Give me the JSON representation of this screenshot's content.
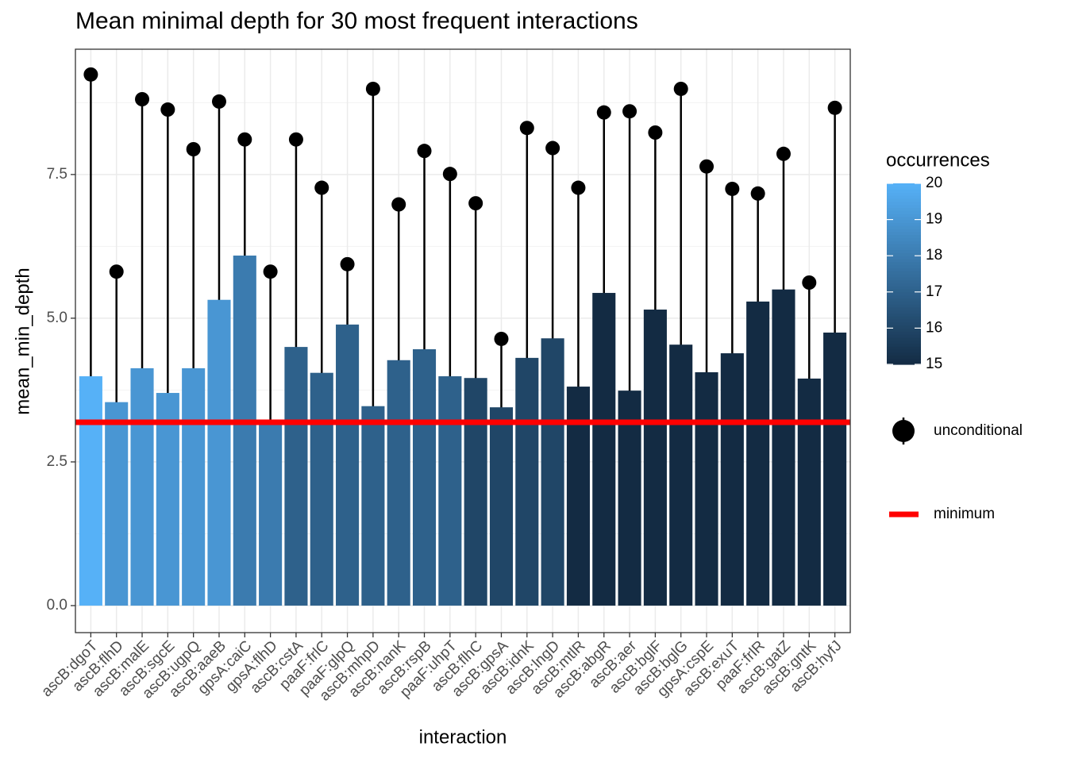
{
  "chart_data": {
    "type": "bar",
    "title": "Mean minimal depth for 30 most frequent interactions",
    "x_label": "interaction",
    "y_label": "mean_min_depth",
    "categories": [
      "ascB:dgoT",
      "ascB:flhD",
      "ascB:malE",
      "ascB:sgcE",
      "ascB:ugpQ",
      "ascB:aaeB",
      "gpsA:caiC",
      "gpsA:flhD",
      "ascB:cstA",
      "paaF:frlC",
      "paaF:glpQ",
      "ascB:mhpD",
      "ascB:nanK",
      "ascB:rspB",
      "paaF:uhpT",
      "ascB:flhC",
      "ascB:gpsA",
      "ascB:idnK",
      "ascB:lngD",
      "ascB:mtlR",
      "ascB:abgR",
      "ascB:aer",
      "ascB:bglF",
      "ascB:bglG",
      "gpsA:cspE",
      "ascB:exuT",
      "paaF:frlR",
      "ascB:gatZ",
      "ascB:gntK",
      "ascB:hyfJ"
    ],
    "values": [
      3.99,
      3.54,
      4.13,
      3.7,
      4.13,
      5.32,
      6.09,
      3.2,
      4.5,
      4.05,
      4.89,
      3.47,
      4.27,
      4.46,
      3.99,
      3.96,
      3.45,
      4.31,
      4.65,
      3.81,
      5.44,
      3.74,
      5.15,
      4.54,
      4.06,
      4.39,
      5.29,
      5.5,
      3.95,
      4.75
    ],
    "occurrences": [
      20,
      19,
      19,
      19,
      19,
      19,
      18,
      18,
      17,
      17,
      17,
      17,
      17,
      17,
      17,
      16,
      16,
      16,
      16,
      15,
      15,
      15,
      15,
      15,
      15,
      15,
      15,
      15,
      15,
      15
    ],
    "unconditional": {
      "name": "unconditional",
      "color": "#000000",
      "values": [
        9.24,
        5.81,
        8.81,
        8.63,
        7.94,
        8.77,
        8.11,
        5.81,
        8.11,
        7.27,
        5.94,
        8.99,
        6.98,
        7.91,
        7.51,
        7.0,
        4.64,
        8.31,
        7.96,
        7.27,
        8.58,
        8.6,
        8.23,
        8.99,
        7.64,
        7.25,
        7.17,
        7.86,
        5.62,
        8.66
      ]
    },
    "minimum": {
      "name": "minimum",
      "color": "#ff0000",
      "value": 3.19
    },
    "ylim": [
      -0.47,
      9.68
    ],
    "yticks": [
      {
        "value": 0,
        "label": "0.0"
      },
      2.5,
      {
        "value": 5,
        "label": "5.0"
      },
      7.5
    ],
    "y_minor_ticks": [
      1.25,
      3.75,
      6.25,
      8.75
    ],
    "grid": true,
    "colorbar": {
      "title": "occurrences",
      "lim": [
        15,
        20
      ],
      "ticks": [
        15,
        16,
        17,
        18,
        19,
        20
      ],
      "low": "#132B43",
      "high": "#56B1F7"
    }
  }
}
